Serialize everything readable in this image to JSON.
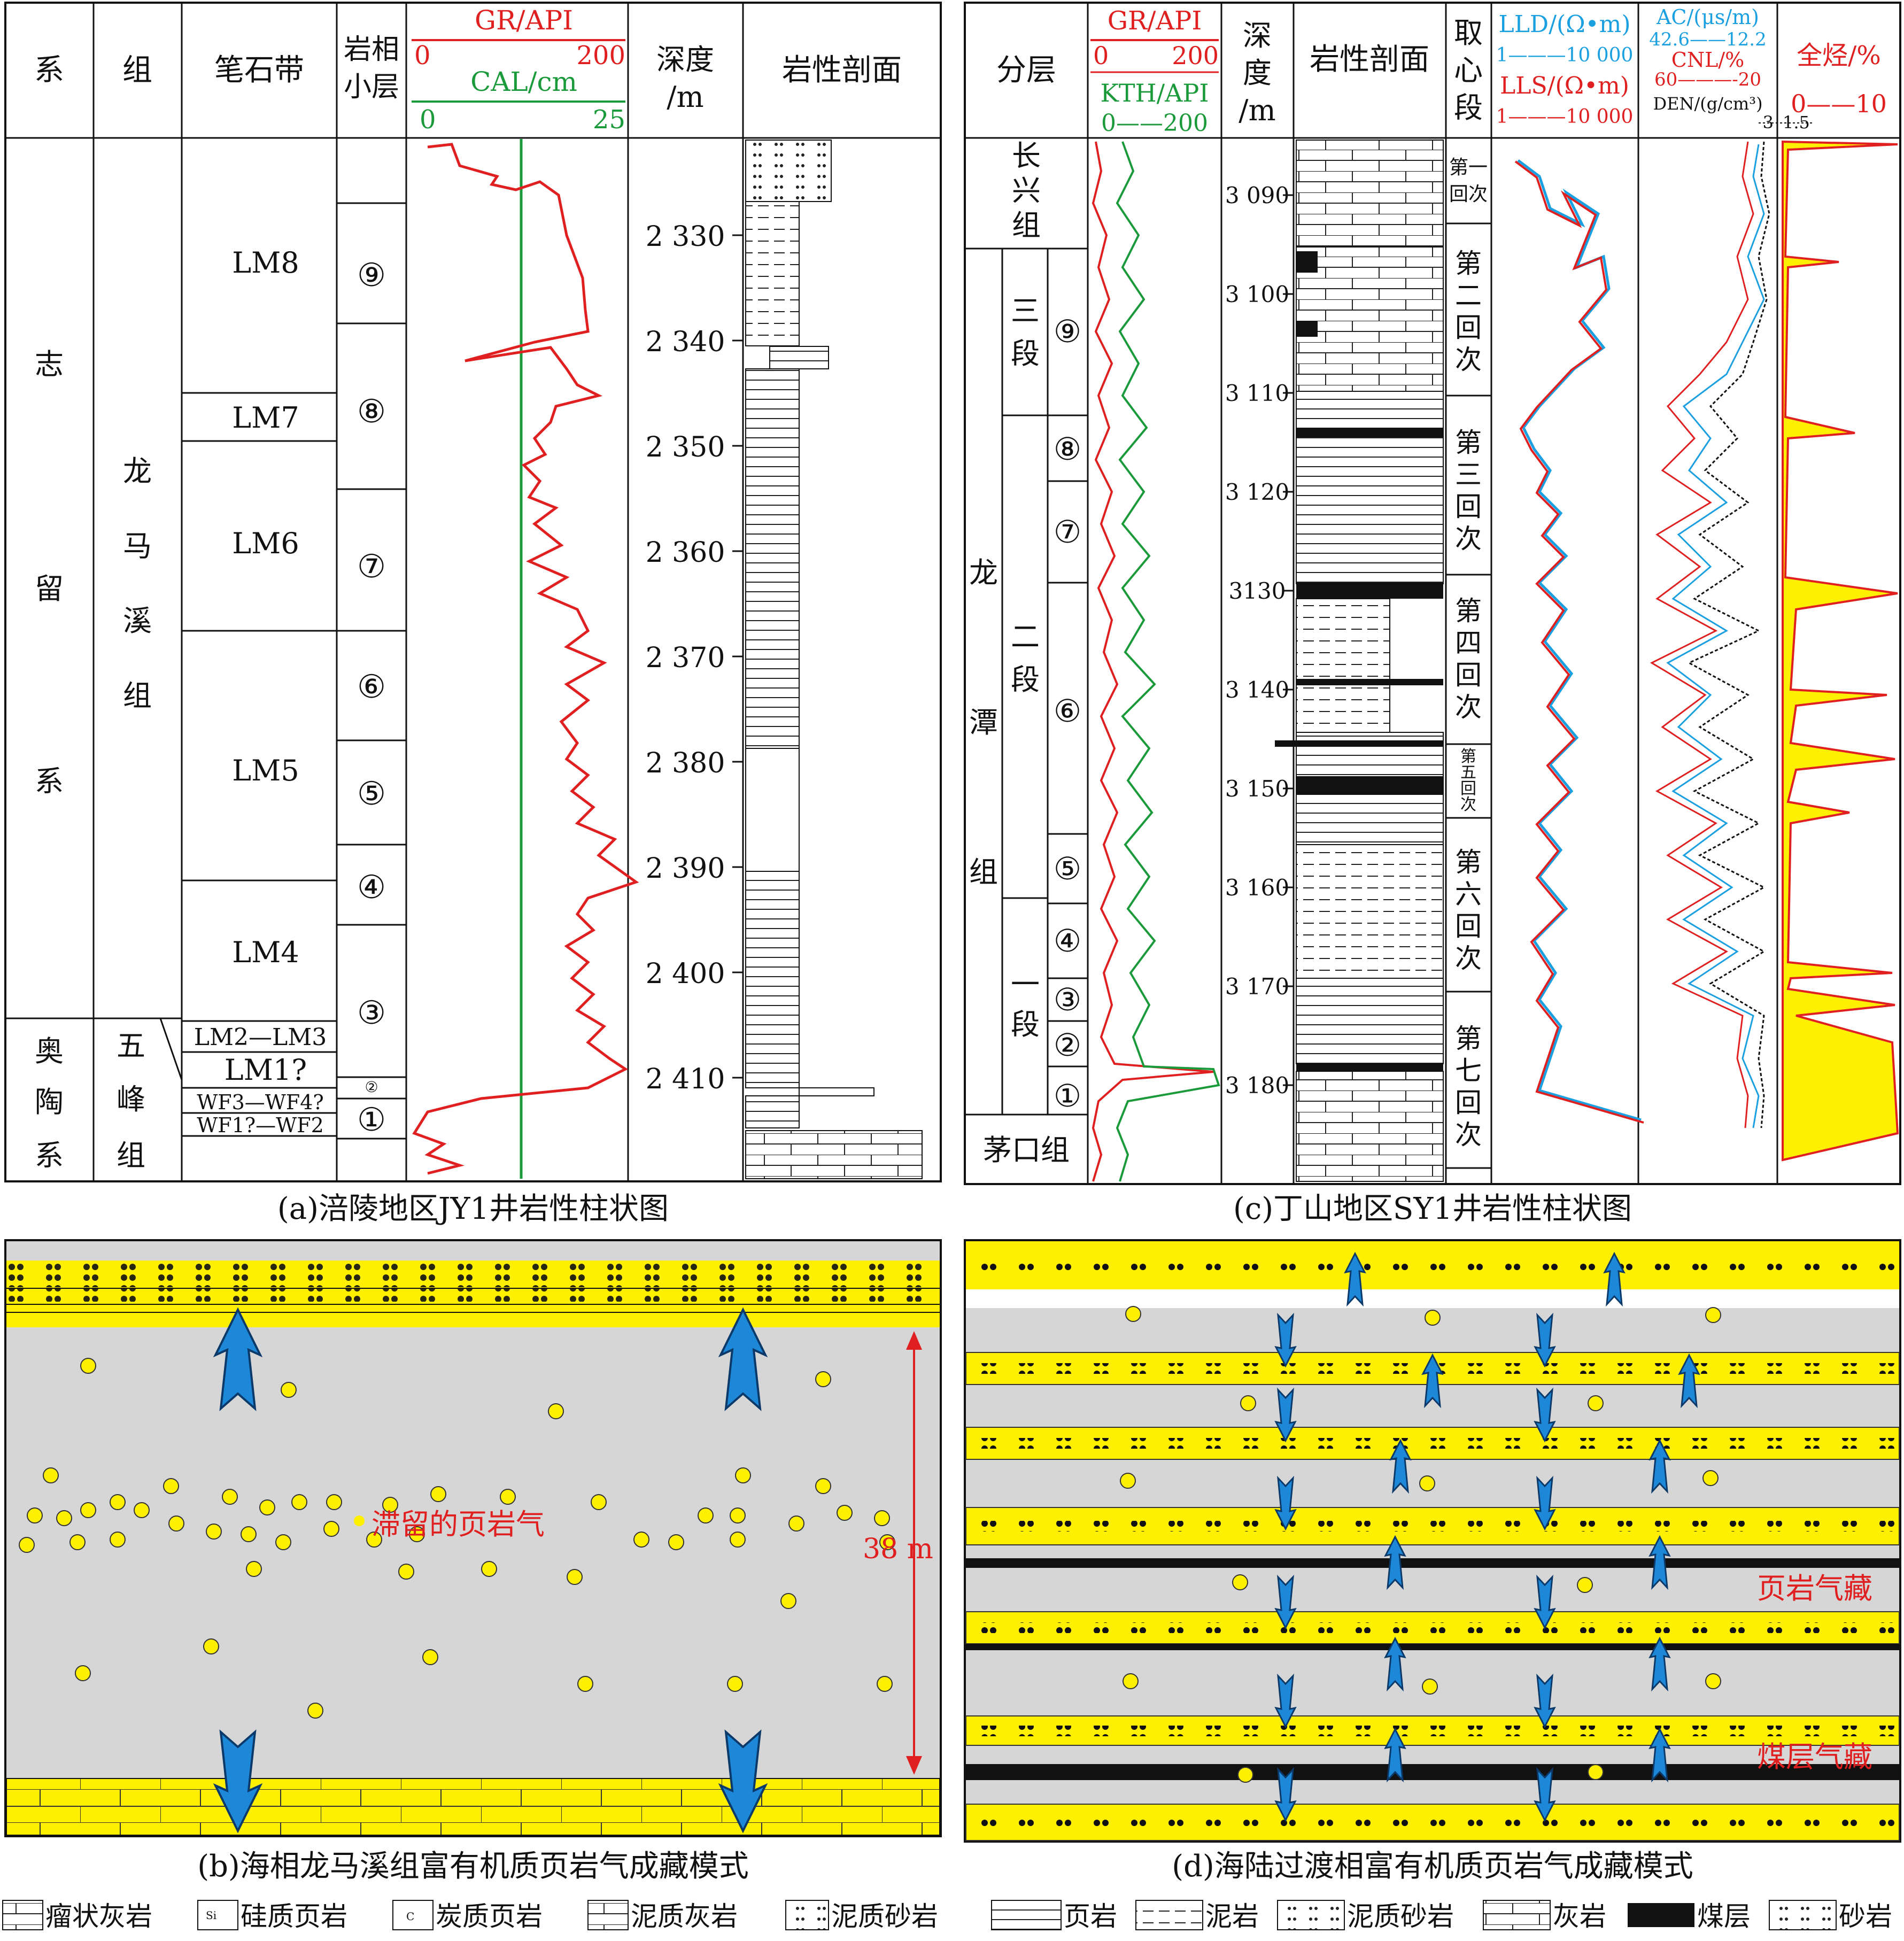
{
  "panel_a": {
    "caption": "(a)涪陵地区JY1井岩性柱状图",
    "headers": {
      "system": "系",
      "formation": "组",
      "graptolite": "笔石带",
      "sublayer": "岩相小层",
      "gr": "GR/API",
      "gr_min": "0",
      "gr_max": "200",
      "cal": "CAL/cm",
      "cal_min": "0",
      "cal_max": "25",
      "depth": "深度/m",
      "litho": "岩性剖面"
    },
    "systems": [
      "志留系",
      "奥陶系"
    ],
    "formations": [
      "龙马溪组",
      "五峰组"
    ],
    "zones": [
      "LM8",
      "LM7",
      "LM6",
      "LM5",
      "LM4",
      "LM2—LM3",
      "LM1?",
      "WF3—WF4?",
      "WF1?—WF2"
    ],
    "sublayers": [
      "⑨",
      "⑧",
      "⑦",
      "⑥",
      "⑤",
      "④",
      "③",
      "②",
      "①"
    ],
    "depths": [
      "2 330",
      "2 340",
      "2 350",
      "2 360",
      "2 370",
      "2 380",
      "2 390",
      "2 400",
      "2 410"
    ]
  },
  "panel_b": {
    "caption": "(b)海相龙马溪组富有机质页岩气成藏模式",
    "label_gas": "滞留的页岩气",
    "thickness": "38 m"
  },
  "panel_c": {
    "caption": "(c)丁山地区SY1井岩性柱状图",
    "headers": {
      "layer": "分层",
      "gr": "GR/API",
      "gr_min": "0",
      "gr_max": "200",
      "kth": "KTH/API",
      "kth_range": "0——200",
      "depth": "深度/m",
      "litho": "岩性剖面",
      "core": "取心段",
      "lld": "LLD/(Ω•m)",
      "lld_range": "1———10 000",
      "lls": "LLS/(Ω•m)",
      "lls_range": "1———10 000",
      "ac": "AC/(μs/m)",
      "ac_range": "42.6——12.2",
      "cnl": "CNL/%",
      "cnl_range": "60———-20",
      "den": "DEN/(g/cm³)",
      "den_min": "1.5",
      "den_max": "3",
      "tg": "全烃/%",
      "tg_range": "0——10"
    },
    "formations": [
      "长兴组",
      "龙潭组",
      "茅口组"
    ],
    "members": [
      "三段",
      "二段",
      "一段"
    ],
    "sublayers": [
      "⑨",
      "⑧",
      "⑦",
      "⑥",
      "⑤",
      "④",
      "③",
      "②",
      "①"
    ],
    "depths": [
      "3 090",
      "3 100",
      "3 110",
      "3 120",
      "3130",
      "3 140",
      "3 150",
      "3 160",
      "3 170",
      "3 180"
    ],
    "cycles": [
      "第一回次",
      "第二回次",
      "第三回次",
      "第四回次",
      "第五回次",
      "第六回次",
      "第七回次"
    ]
  },
  "panel_d": {
    "caption": "(d)海陆过渡相富有机质页岩气成藏模式",
    "label_shale": "页岩气藏",
    "label_coal": "煤层气藏"
  },
  "legend": [
    "瘤状灰岩",
    "硅质页岩",
    "炭质页岩",
    "泥质灰岩",
    "泥质砂岩",
    "页岩",
    "泥岩",
    "泥质砂岩",
    "灰岩",
    "煤层",
    "砂岩"
  ],
  "colors": {
    "red": "#e02020",
    "green": "#1a9a3a",
    "blue": "#1aa0e0",
    "yellow": "#ffef00",
    "grey": "#d6d6d6"
  }
}
